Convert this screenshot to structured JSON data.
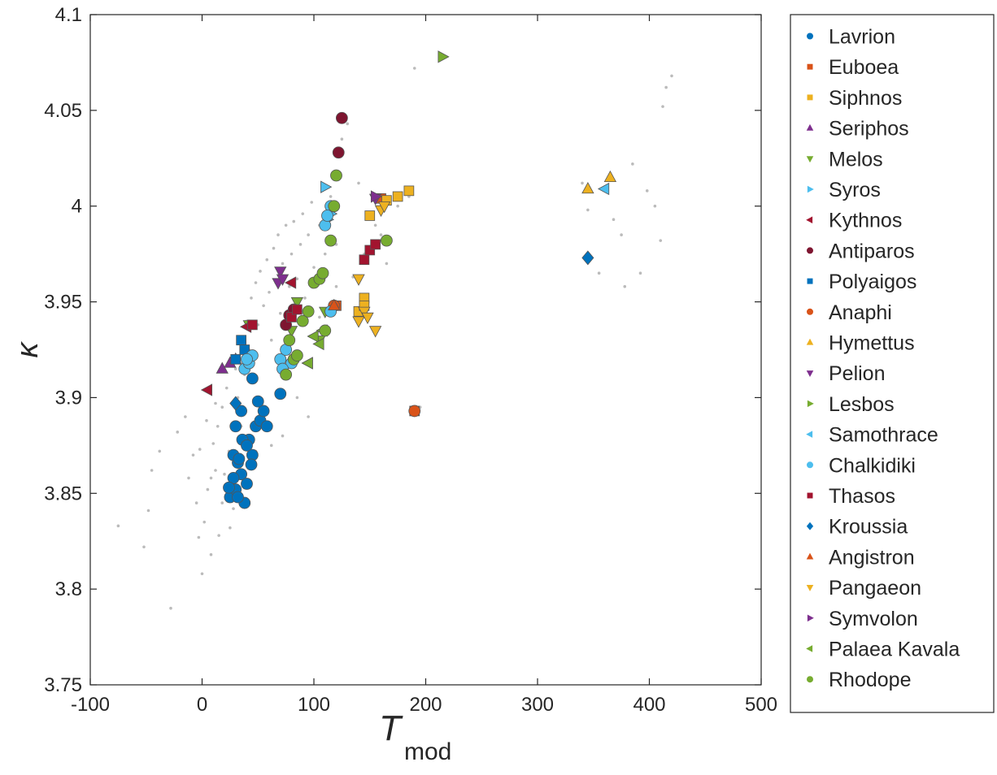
{
  "chart_data": {
    "type": "scatter",
    "title": "",
    "xlabel": "T",
    "xlabel_sub": "mod",
    "ylabel": "κ",
    "xlim": [
      -100,
      500
    ],
    "ylim": [
      3.75,
      4.1
    ],
    "xticks": [
      -100,
      0,
      100,
      200,
      300,
      400,
      500
    ],
    "xtick_labels": [
      "-100",
      "0",
      "100",
      "200",
      "300",
      "400",
      "500"
    ],
    "yticks": [
      3.75,
      3.8,
      3.85,
      3.9,
      3.95,
      4,
      4.05,
      4.1
    ],
    "ytick_labels": [
      "3.75",
      "3.8",
      "3.85",
      "3.9",
      "3.95",
      "4",
      "4.05",
      "4.1"
    ],
    "grid": false,
    "legend_position": "outside-right",
    "background_points": {
      "color": "#bbbbbb",
      "points": [
        [
          -75,
          3.833
        ],
        [
          -52,
          3.822
        ],
        [
          -48,
          3.841
        ],
        [
          -45,
          3.862
        ],
        [
          -38,
          3.872
        ],
        [
          -28,
          3.79
        ],
        [
          -22,
          3.882
        ],
        [
          -15,
          3.89
        ],
        [
          -12,
          3.858
        ],
        [
          -8,
          3.87
        ],
        [
          -5,
          3.845
        ],
        [
          -3,
          3.827
        ],
        [
          0,
          3.808
        ],
        [
          2,
          3.835
        ],
        [
          5,
          3.852
        ],
        [
          8,
          3.818
        ],
        [
          10,
          3.876
        ],
        [
          12,
          3.862
        ],
        [
          14,
          3.885
        ],
        [
          15,
          3.828
        ],
        [
          18,
          3.895
        ],
        [
          20,
          3.86
        ],
        [
          22,
          3.905
        ],
        [
          24,
          3.872
        ],
        [
          26,
          3.885
        ],
        [
          28,
          3.842
        ],
        [
          30,
          3.915
        ],
        [
          32,
          3.9
        ],
        [
          34,
          3.868
        ],
        [
          36,
          3.93
        ],
        [
          38,
          3.912
        ],
        [
          40,
          3.94
        ],
        [
          42,
          3.925
        ],
        [
          44,
          3.952
        ],
        [
          46,
          3.91
        ],
        [
          48,
          3.96
        ],
        [
          50,
          3.938
        ],
        [
          52,
          3.966
        ],
        [
          55,
          3.948
        ],
        [
          58,
          3.972
        ],
        [
          60,
          3.955
        ],
        [
          62,
          3.93
        ],
        [
          64,
          3.978
        ],
        [
          66,
          3.96
        ],
        [
          68,
          3.985
        ],
        [
          70,
          3.944
        ],
        [
          72,
          3.97
        ],
        [
          75,
          3.99
        ],
        [
          78,
          3.958
        ],
        [
          80,
          3.975
        ],
        [
          82,
          3.992
        ],
        [
          85,
          3.962
        ],
        [
          88,
          3.98
        ],
        [
          90,
          3.996
        ],
        [
          92,
          3.952
        ],
        [
          95,
          3.985
        ],
        [
          98,
          4.002
        ],
        [
          100,
          3.968
        ],
        [
          105,
          3.99
        ],
        [
          110,
          3.975
        ],
        [
          115,
          4.005
        ],
        [
          120,
          3.98
        ],
        [
          125,
          4.035
        ],
        [
          130,
          4.043
        ],
        [
          140,
          4.012
        ],
        [
          150,
          3.995
        ],
        [
          160,
          3.985
        ],
        [
          165,
          3.97
        ],
        [
          190,
          4.072
        ],
        [
          195,
          3.895
        ],
        [
          340,
          4.012
        ],
        [
          345,
          3.998
        ],
        [
          355,
          3.965
        ],
        [
          360,
          4.01
        ],
        [
          368,
          3.993
        ],
        [
          375,
          3.985
        ],
        [
          378,
          3.958
        ],
        [
          385,
          4.022
        ],
        [
          392,
          3.965
        ],
        [
          398,
          4.008
        ],
        [
          405,
          4.0
        ],
        [
          410,
          3.982
        ],
        [
          412,
          4.052
        ],
        [
          415,
          4.062
        ],
        [
          420,
          4.068
        ],
        [
          55,
          3.89
        ],
        [
          62,
          3.875
        ],
        [
          48,
          3.872
        ],
        [
          72,
          3.88
        ],
        [
          85,
          3.9
        ],
        [
          95,
          3.89
        ],
        [
          18,
          3.845
        ],
        [
          25,
          3.832
        ],
        [
          8,
          3.858
        ],
        [
          -2,
          3.873
        ],
        [
          4,
          3.888
        ],
        [
          12,
          3.897
        ],
        [
          35,
          3.885
        ],
        [
          78,
          3.932
        ],
        [
          105,
          3.942
        ],
        [
          120,
          3.958
        ],
        [
          135,
          3.963
        ],
        [
          145,
          3.975
        ],
        [
          155,
          3.99
        ],
        [
          175,
          4.0
        ],
        [
          185,
          4.005
        ]
      ]
    },
    "series": [
      {
        "name": "Lavrion",
        "color": "#0072BD",
        "marker": "circle",
        "points": [
          [
            25,
            3.848
          ],
          [
            30,
            3.852
          ],
          [
            35,
            3.86
          ],
          [
            38,
            3.845
          ],
          [
            28,
            3.858
          ],
          [
            32,
            3.866
          ],
          [
            40,
            3.855
          ],
          [
            45,
            3.87
          ],
          [
            48,
            3.885
          ],
          [
            52,
            3.888
          ],
          [
            55,
            3.893
          ],
          [
            58,
            3.885
          ],
          [
            50,
            3.898
          ],
          [
            42,
            3.878
          ],
          [
            36,
            3.878
          ],
          [
            30,
            3.885
          ],
          [
            35,
            3.893
          ],
          [
            40,
            3.875
          ],
          [
            28,
            3.87
          ],
          [
            33,
            3.868
          ],
          [
            45,
            3.91
          ],
          [
            70,
            3.902
          ],
          [
            44,
            3.865
          ],
          [
            24,
            3.853
          ],
          [
            32,
            3.848
          ]
        ]
      },
      {
        "name": "Euboea",
        "color": "#D95319",
        "marker": "square",
        "points": [
          [
            190,
            3.893
          ],
          [
            120,
            3.948
          ],
          [
            160,
            4.004
          ]
        ]
      },
      {
        "name": "Siphnos",
        "color": "#EDB120",
        "marker": "square",
        "points": [
          [
            140,
            3.945
          ],
          [
            145,
            3.952
          ],
          [
            150,
            3.995
          ],
          [
            165,
            4.003
          ],
          [
            185,
            4.008
          ],
          [
            175,
            4.005
          ],
          [
            145,
            3.948
          ]
        ]
      },
      {
        "name": "Seriphos",
        "color": "#7E2F8E",
        "marker": "triangle-up",
        "points": [
          [
            18,
            3.915
          ],
          [
            25,
            3.918
          ],
          [
            30,
            3.92
          ]
        ]
      },
      {
        "name": "Melos",
        "color": "#77AC30",
        "marker": "triangle-down",
        "points": [
          [
            42,
            3.938
          ],
          [
            80,
            3.935
          ],
          [
            85,
            3.95
          ],
          [
            105,
            3.93
          ],
          [
            110,
            3.945
          ]
        ]
      },
      {
        "name": "Syros",
        "color": "#4DBEEE",
        "marker": "triangle-right",
        "points": [
          [
            110,
            4.01
          ],
          [
            112,
            3.993
          ],
          [
            115,
            3.996
          ]
        ]
      },
      {
        "name": "Kythnos",
        "color": "#A2142F",
        "marker": "triangle-left",
        "points": [
          [
            5,
            3.904
          ],
          [
            80,
            3.96
          ],
          [
            40,
            3.937
          ]
        ]
      },
      {
        "name": "Antiparos",
        "color": "#7E1530",
        "marker": "circle",
        "points": [
          [
            125,
            4.046
          ],
          [
            122,
            4.028
          ],
          [
            75,
            3.938
          ],
          [
            78,
            3.943
          ],
          [
            82,
            3.946
          ]
        ]
      },
      {
        "name": "Polyaigos",
        "color": "#0072BD",
        "marker": "square",
        "points": [
          [
            30,
            3.92
          ],
          [
            35,
            3.93
          ],
          [
            38,
            3.925
          ]
        ]
      },
      {
        "name": "Anaphi",
        "color": "#D95319",
        "marker": "circle",
        "points": [
          [
            190,
            3.893
          ],
          [
            118,
            3.948
          ]
        ]
      },
      {
        "name": "Hymettus",
        "color": "#EDB120",
        "marker": "triangle-up",
        "points": [
          [
            345,
            4.009
          ],
          [
            365,
            4.015
          ]
        ]
      },
      {
        "name": "Pelion",
        "color": "#7E2F8E",
        "marker": "triangle-down",
        "points": [
          [
            68,
            3.96
          ],
          [
            70,
            3.966
          ],
          [
            72,
            3.962
          ],
          [
            155,
            4.004
          ]
        ]
      },
      {
        "name": "Lesbos",
        "color": "#77AC30",
        "marker": "triangle-right",
        "points": [
          [
            215,
            4.078
          ]
        ]
      },
      {
        "name": "Samothrace",
        "color": "#4DBEEE",
        "marker": "triangle-left",
        "points": [
          [
            360,
            4.009
          ],
          [
            95,
            3.918
          ]
        ]
      },
      {
        "name": "Chalkidiki",
        "color": "#4DBEEE",
        "marker": "circle",
        "points": [
          [
            38,
            3.915
          ],
          [
            42,
            3.918
          ],
          [
            45,
            3.922
          ],
          [
            70,
            3.92
          ],
          [
            75,
            3.925
          ],
          [
            80,
            3.918
          ],
          [
            72,
            3.915
          ],
          [
            110,
            3.99
          ],
          [
            115,
            4.0
          ],
          [
            112,
            3.995
          ],
          [
            40,
            3.92
          ],
          [
            115,
            3.945
          ]
        ]
      },
      {
        "name": "Thasos",
        "color": "#A2142F",
        "marker": "square",
        "points": [
          [
            145,
            3.972
          ],
          [
            150,
            3.977
          ],
          [
            155,
            3.98
          ],
          [
            45,
            3.938
          ],
          [
            80,
            3.942
          ],
          [
            85,
            3.946
          ]
        ]
      },
      {
        "name": "Kroussia",
        "color": "#0072BD",
        "marker": "diamond",
        "points": [
          [
            345,
            3.973
          ],
          [
            30,
            3.897
          ]
        ]
      },
      {
        "name": "Angistron",
        "color": "#D95319",
        "marker": "triangle-up",
        "points": [
          [
            118,
            3.948
          ]
        ]
      },
      {
        "name": "Pangaeon",
        "color": "#EDB120",
        "marker": "triangle-down",
        "points": [
          [
            140,
            3.962
          ],
          [
            140,
            3.94
          ],
          [
            145,
            3.945
          ],
          [
            148,
            3.942
          ],
          [
            155,
            3.935
          ],
          [
            160,
            3.998
          ],
          [
            163,
            4.0
          ]
        ]
      },
      {
        "name": "Symvolon",
        "color": "#7E2F8E",
        "marker": "triangle-right",
        "points": [
          [
            155,
            4.005
          ]
        ]
      },
      {
        "name": "Palaea Kavala",
        "color": "#77AC30",
        "marker": "triangle-left",
        "points": [
          [
            100,
            3.932
          ],
          [
            105,
            3.928
          ],
          [
            108,
            3.935
          ],
          [
            95,
            3.918
          ]
        ]
      },
      {
        "name": "Rhodope",
        "color": "#77AC30",
        "marker": "circle",
        "points": [
          [
            90,
            3.94
          ],
          [
            95,
            3.945
          ],
          [
            100,
            3.96
          ],
          [
            105,
            3.962
          ],
          [
            108,
            3.965
          ],
          [
            115,
            3.982
          ],
          [
            118,
            4.0
          ],
          [
            120,
            4.016
          ],
          [
            75,
            3.912
          ],
          [
            82,
            3.92
          ],
          [
            85,
            3.922
          ],
          [
            110,
            3.935
          ],
          [
            165,
            3.982
          ],
          [
            78,
            3.93
          ]
        ]
      }
    ]
  }
}
